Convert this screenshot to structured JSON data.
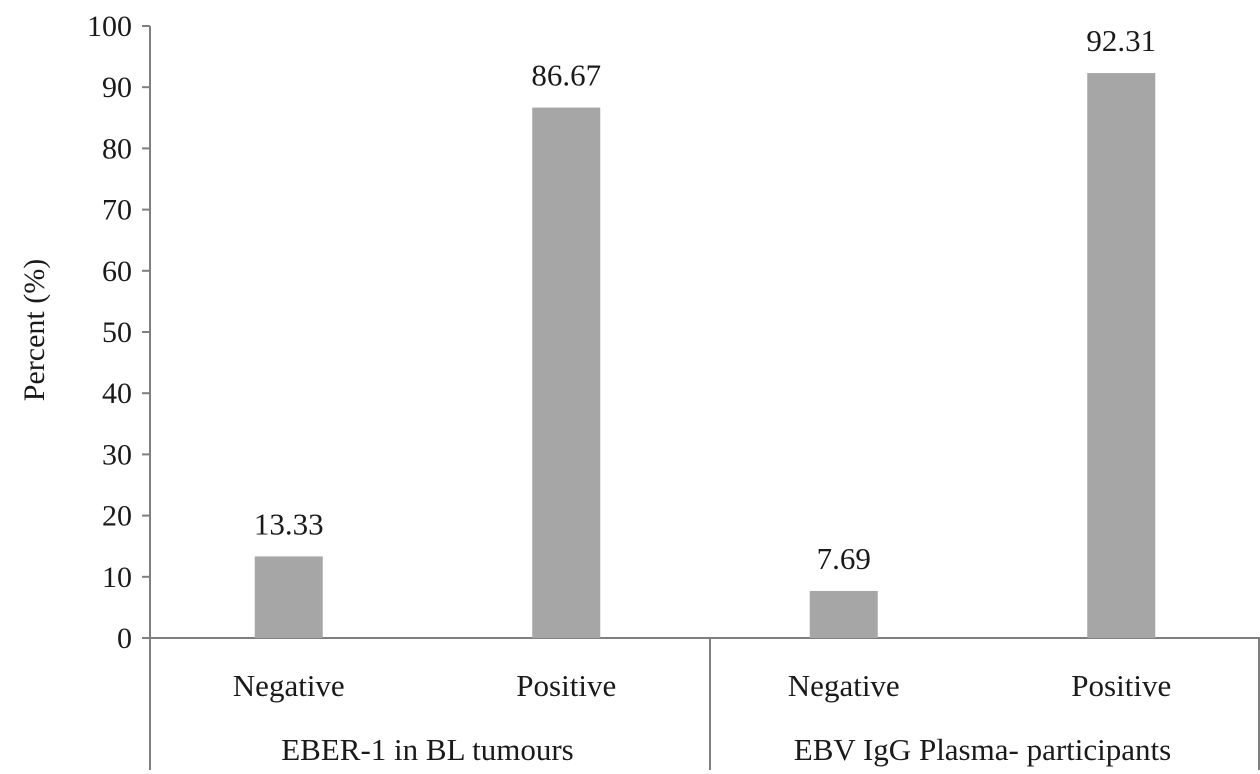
{
  "chart_data": {
    "type": "bar",
    "ylabel": "Percent (%)",
    "ylim": [
      0,
      100
    ],
    "yticks": [
      "0",
      "10",
      "20",
      "30",
      "40",
      "50",
      "60",
      "70",
      "80",
      "90",
      "100"
    ],
    "grid": false,
    "legend": "none",
    "bar_color": "#a6a6a6",
    "groups": [
      {
        "label": "EBER-1 in BL tumours",
        "categories": [
          "Negative",
          "Positive"
        ],
        "values": [
          13.33,
          86.67
        ],
        "data_labels": [
          "13.33",
          "86.67"
        ]
      },
      {
        "label": "EBV IgG Plasma- participants",
        "categories": [
          "Negative",
          "Positive"
        ],
        "values": [
          7.69,
          92.31
        ],
        "data_labels": [
          "7.69",
          "92.31"
        ]
      }
    ]
  }
}
